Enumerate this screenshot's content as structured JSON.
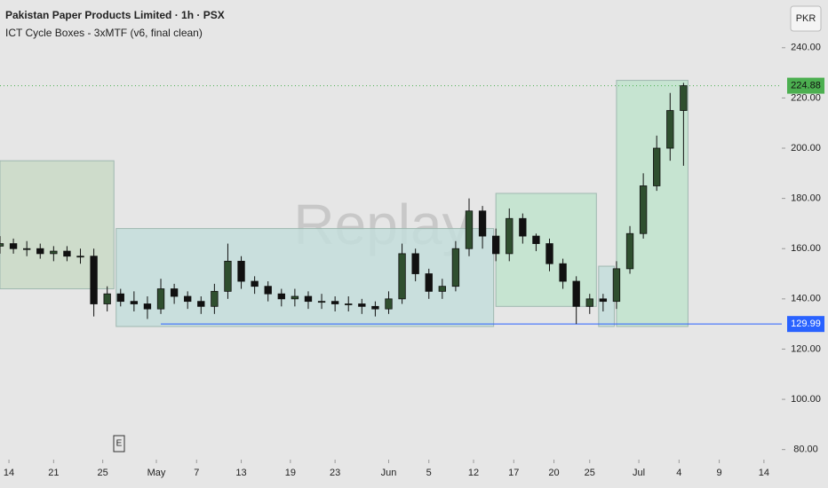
{
  "chart_data": {
    "type": "candlestick",
    "title": "Pakistan Paper Products Limited · 1h · PSX",
    "subtitle": "ICT Cycle Boxes - 3xMTF (v6, final clean)",
    "currency": "PKR",
    "watermark": "Replay",
    "event_marker": "E",
    "xlim": [
      0,
      175
    ],
    "ylim": [
      76,
      259
    ],
    "yticks": [
      {
        "value": 80,
        "label": "80.00"
      },
      {
        "value": 100,
        "label": "100.00"
      },
      {
        "value": 120,
        "label": "120.00"
      },
      {
        "value": 140,
        "label": "140.00"
      },
      {
        "value": 160,
        "label": "160.00"
      },
      {
        "value": 180,
        "label": "180.00"
      },
      {
        "value": 200,
        "label": "200.00"
      },
      {
        "value": 220,
        "label": "220.00"
      },
      {
        "value": 240,
        "label": "240.00"
      }
    ],
    "xticks": [
      {
        "value": 2,
        "label": "14"
      },
      {
        "value": 12,
        "label": "21"
      },
      {
        "value": 23,
        "label": "25"
      },
      {
        "value": 35,
        "label": "May"
      },
      {
        "value": 44,
        "label": "7"
      },
      {
        "value": 54,
        "label": "13"
      },
      {
        "value": 65,
        "label": "19"
      },
      {
        "value": 75,
        "label": "23"
      },
      {
        "value": 87,
        "label": "Jun"
      },
      {
        "value": 96,
        "label": "5"
      },
      {
        "value": 106,
        "label": "12"
      },
      {
        "value": 115,
        "label": "17"
      },
      {
        "value": 124,
        "label": "20"
      },
      {
        "value": 132,
        "label": "25"
      },
      {
        "value": 143,
        "label": "Jul"
      },
      {
        "value": 152,
        "label": "4"
      },
      {
        "value": 161,
        "label": "9"
      },
      {
        "value": 171,
        "label": "14"
      }
    ],
    "x": [
      0,
      3,
      6,
      9,
      12,
      15,
      18,
      21,
      24,
      27,
      30,
      33,
      36,
      39,
      42,
      45,
      48,
      51,
      54,
      57,
      60,
      63,
      66,
      69,
      72,
      75,
      78,
      81,
      84,
      87,
      90,
      93,
      96,
      99,
      102,
      105,
      108,
      111,
      114,
      117,
      120,
      123,
      126,
      129,
      132,
      135,
      138,
      141,
      144,
      147,
      150,
      153
    ],
    "open": [
      161,
      162,
      160,
      160,
      158,
      159,
      157,
      157,
      138,
      142,
      139,
      138,
      136,
      144,
      141,
      139,
      137,
      143,
      155,
      147,
      145,
      142,
      140,
      141,
      139,
      139,
      138,
      138,
      137,
      136,
      140,
      158,
      150,
      143,
      145,
      160,
      175,
      165,
      158,
      172,
      165,
      162,
      154,
      147,
      137,
      140,
      139,
      152,
      166,
      185,
      200,
      215
    ],
    "high": [
      165,
      164,
      163,
      162,
      161,
      161,
      160,
      160,
      145,
      144,
      143,
      141,
      148,
      146,
      143,
      141,
      146,
      162,
      157,
      149,
      147,
      144,
      144,
      143,
      142,
      141,
      141,
      140,
      139,
      143,
      162,
      160,
      152,
      148,
      163,
      180,
      177,
      168,
      176,
      174,
      166,
      164,
      156,
      149,
      142,
      142,
      155,
      169,
      190,
      205,
      222,
      226
    ],
    "low": [
      158,
      158,
      157,
      156,
      155,
      155,
      154,
      133,
      135,
      137,
      135,
      132,
      134,
      138,
      136,
      134,
      134,
      140,
      144,
      142,
      139,
      137,
      137,
      136,
      136,
      135,
      135,
      134,
      133,
      134,
      138,
      147,
      140,
      140,
      143,
      157,
      160,
      155,
      155,
      162,
      159,
      151,
      144,
      130,
      134,
      135,
      136,
      150,
      164,
      183,
      195,
      193
    ],
    "close": [
      162,
      160,
      160,
      158,
      159,
      157,
      157,
      138,
      142,
      139,
      138,
      136,
      144,
      141,
      139,
      137,
      143,
      155,
      147,
      145,
      142,
      140,
      141,
      139,
      139,
      138,
      138,
      137,
      136,
      140,
      158,
      150,
      143,
      145,
      160,
      175,
      165,
      158,
      172,
      165,
      162,
      154,
      147,
      137,
      140,
      139,
      152,
      166,
      185,
      200,
      215,
      224.88
    ],
    "up_color": "#2f4f2f",
    "down_color": "#111111",
    "boxes": [
      {
        "x": [
          0,
          25.5
        ],
        "y": [
          144,
          195
        ],
        "color": "#c9d9c6"
      },
      {
        "x": [
          26,
          110.5
        ],
        "y": [
          129,
          168
        ],
        "color": "#c3dddb"
      },
      {
        "x": [
          111,
          133.5
        ],
        "y": [
          137,
          182
        ],
        "color": "#bfe3cc"
      },
      {
        "x": [
          134,
          137.5
        ],
        "y": [
          129,
          153
        ],
        "color": "#c3dddb"
      },
      {
        "x": [
          138,
          154
        ],
        "y": [
          129,
          227
        ],
        "color": "#bfe3cc"
      }
    ],
    "last_price": 224.88,
    "last_color": "#4caf50",
    "support": 129.99,
    "support_start": 36,
    "support_color": "#2962ff"
  }
}
